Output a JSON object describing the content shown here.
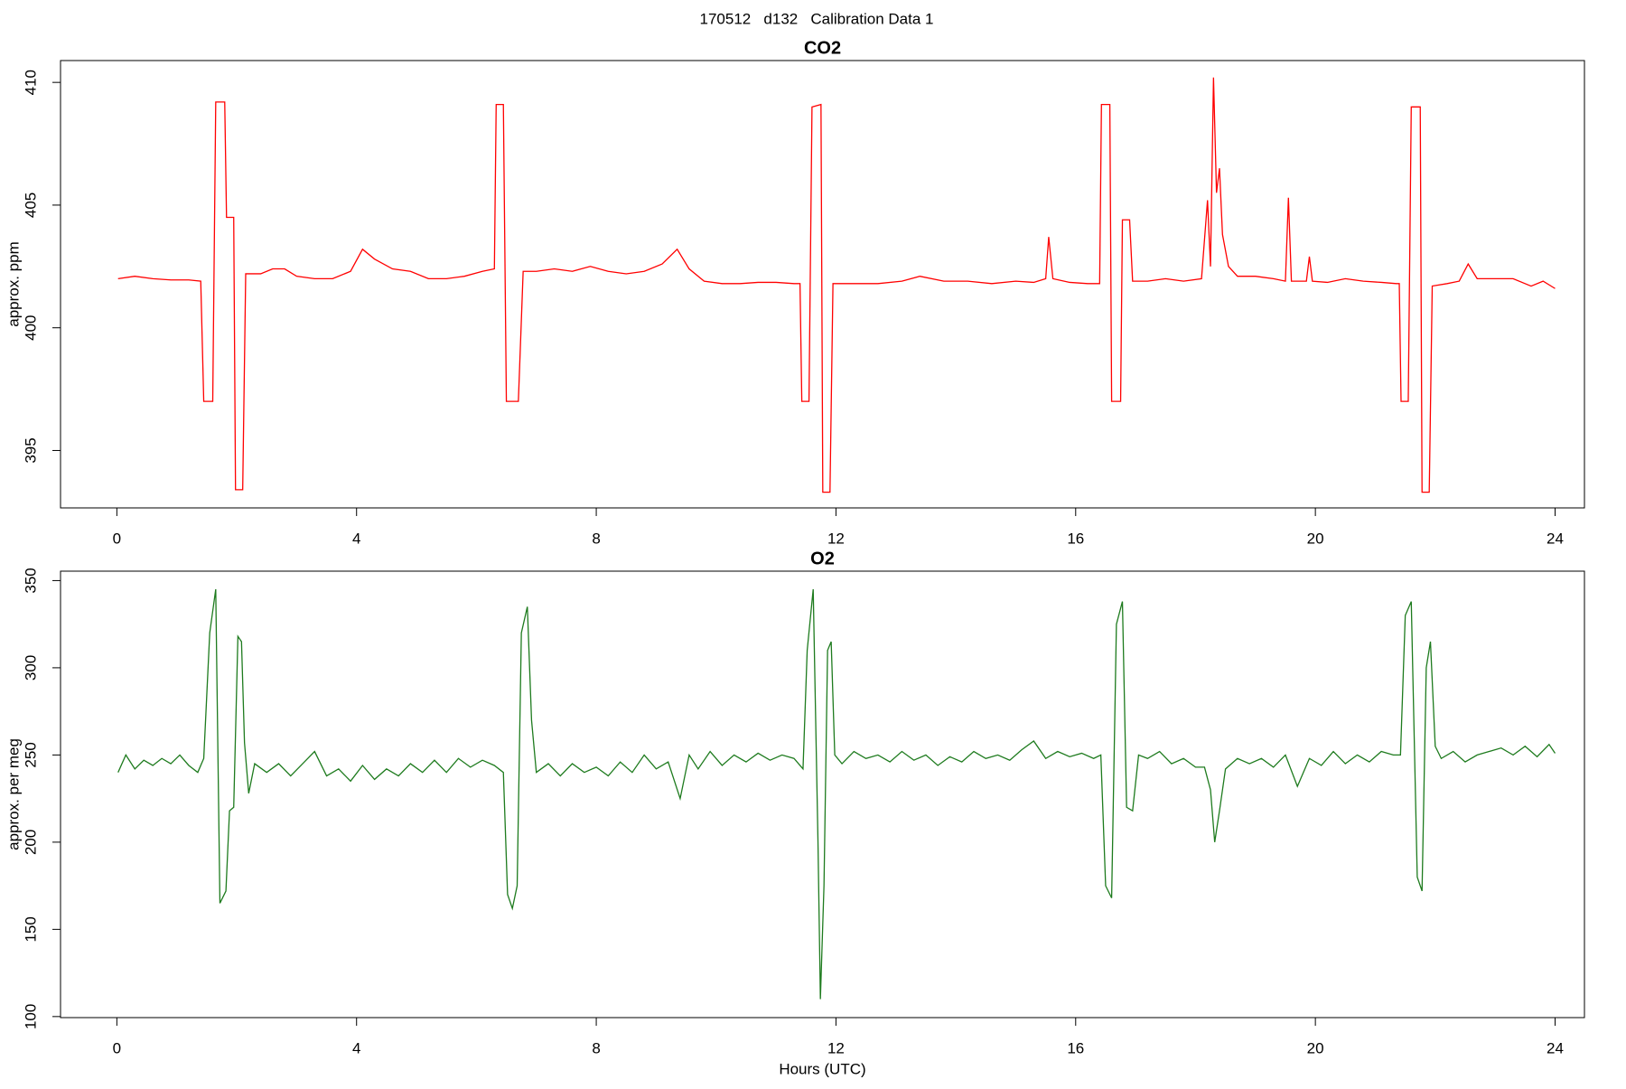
{
  "title": "170512   d132   Calibration Data 1",
  "chart_data": [
    {
      "type": "line",
      "title": "CO2",
      "ylabel": "approx. ppm",
      "x": [
        0.02,
        0.3,
        0.6,
        0.9,
        1.2,
        1.4,
        1.45,
        1.6,
        1.65,
        1.8,
        1.83,
        1.95,
        1.98,
        2.1,
        2.15,
        2.4,
        2.6,
        2.8,
        3.0,
        3.3,
        3.6,
        3.9,
        4.1,
        4.3,
        4.6,
        4.9,
        5.2,
        5.5,
        5.8,
        6.1,
        6.3,
        6.33,
        6.45,
        6.5,
        6.7,
        6.78,
        7.0,
        7.3,
        7.6,
        7.9,
        8.2,
        8.5,
        8.8,
        9.1,
        9.35,
        9.55,
        9.8,
        10.1,
        10.4,
        10.7,
        11.0,
        11.3,
        11.4,
        11.43,
        11.55,
        11.6,
        11.75,
        11.78,
        11.9,
        11.95,
        12.3,
        12.7,
        13.1,
        13.4,
        13.8,
        14.2,
        14.6,
        15.0,
        15.3,
        15.5,
        15.55,
        15.62,
        15.9,
        16.2,
        16.4,
        16.43,
        16.57,
        16.6,
        16.75,
        16.78,
        16.9,
        16.95,
        17.2,
        17.5,
        17.8,
        18.1,
        18.2,
        18.25,
        18.3,
        18.35,
        18.4,
        18.45,
        18.55,
        18.7,
        19.0,
        19.3,
        19.5,
        19.55,
        19.6,
        19.85,
        19.9,
        19.95,
        20.2,
        20.5,
        20.8,
        21.1,
        21.35,
        21.4,
        21.43,
        21.55,
        21.6,
        21.75,
        21.78,
        21.9,
        21.95,
        22.2,
        22.4,
        22.55,
        22.7,
        23.0,
        23.3,
        23.6,
        23.8,
        24.0
      ],
      "series": [
        {
          "color": "#ff0000",
          "values": [
            402.0,
            402.1,
            402.0,
            401.95,
            401.95,
            401.9,
            397.0,
            397.0,
            409.2,
            409.2,
            404.5,
            404.5,
            393.4,
            393.4,
            402.2,
            402.2,
            402.4,
            402.4,
            402.1,
            402.0,
            402.0,
            402.3,
            403.2,
            402.8,
            402.4,
            402.3,
            402.0,
            402.0,
            402.1,
            402.3,
            402.4,
            409.1,
            409.1,
            397.0,
            397.0,
            402.3,
            402.3,
            402.4,
            402.3,
            402.5,
            402.3,
            402.2,
            402.3,
            402.6,
            403.2,
            402.4,
            401.9,
            401.8,
            401.8,
            401.85,
            401.85,
            401.8,
            401.8,
            397.0,
            397.0,
            409.0,
            409.1,
            393.3,
            393.3,
            401.8,
            401.8,
            401.8,
            401.9,
            402.1,
            401.9,
            401.9,
            401.8,
            401.9,
            401.85,
            402.0,
            403.7,
            402.0,
            401.85,
            401.8,
            401.8,
            409.1,
            409.1,
            397.0,
            397.0,
            404.4,
            404.4,
            401.9,
            401.9,
            402.0,
            401.9,
            402.0,
            405.2,
            402.5,
            410.2,
            405.5,
            406.5,
            403.8,
            402.5,
            402.1,
            402.1,
            402.0,
            401.9,
            405.3,
            401.9,
            401.9,
            402.9,
            401.9,
            401.85,
            402.0,
            401.9,
            401.85,
            401.8,
            401.8,
            397.0,
            397.0,
            409.0,
            409.0,
            393.3,
            393.3,
            401.7,
            401.8,
            401.9,
            402.6,
            402.0,
            402.0,
            402.0,
            401.7,
            401.9,
            401.6
          ]
        }
      ],
      "xlim": [
        -0.94,
        24.49
      ],
      "xticks": [
        0,
        4,
        8,
        12,
        16,
        20,
        24
      ],
      "ylim": [
        392.66,
        410.89
      ],
      "yticks": [
        395,
        400,
        405,
        410
      ]
    },
    {
      "type": "line",
      "title": "O2",
      "ylabel": "approx. per meg",
      "xlabel": "Hours (UTC)",
      "x": [
        0.02,
        0.15,
        0.3,
        0.45,
        0.6,
        0.75,
        0.9,
        1.05,
        1.2,
        1.35,
        1.45,
        1.55,
        1.65,
        1.72,
        1.82,
        1.88,
        1.95,
        2.02,
        2.08,
        2.13,
        2.2,
        2.3,
        2.5,
        2.7,
        2.9,
        3.1,
        3.3,
        3.5,
        3.7,
        3.9,
        4.1,
        4.3,
        4.5,
        4.7,
        4.9,
        5.1,
        5.3,
        5.5,
        5.7,
        5.9,
        6.1,
        6.3,
        6.45,
        6.52,
        6.6,
        6.68,
        6.75,
        6.85,
        6.92,
        7.0,
        7.2,
        7.4,
        7.6,
        7.8,
        8.0,
        8.2,
        8.4,
        8.6,
        8.8,
        9.0,
        9.2,
        9.4,
        9.55,
        9.7,
        9.9,
        10.1,
        10.3,
        10.5,
        10.7,
        10.9,
        11.1,
        11.3,
        11.45,
        11.52,
        11.62,
        11.7,
        11.74,
        11.8,
        11.86,
        11.92,
        11.98,
        12.1,
        12.3,
        12.5,
        12.7,
        12.9,
        13.1,
        13.3,
        13.5,
        13.7,
        13.9,
        14.1,
        14.3,
        14.5,
        14.7,
        14.9,
        15.1,
        15.3,
        15.5,
        15.7,
        15.9,
        16.1,
        16.3,
        16.42,
        16.5,
        16.6,
        16.68,
        16.78,
        16.85,
        16.95,
        17.05,
        17.2,
        17.4,
        17.6,
        17.8,
        18.0,
        18.15,
        18.25,
        18.32,
        18.4,
        18.5,
        18.7,
        18.9,
        19.1,
        19.3,
        19.5,
        19.7,
        19.9,
        20.1,
        20.3,
        20.5,
        20.7,
        20.9,
        21.1,
        21.3,
        21.42,
        21.5,
        21.6,
        21.7,
        21.78,
        21.85,
        21.92,
        22.0,
        22.1,
        22.3,
        22.5,
        22.7,
        22.9,
        23.1,
        23.3,
        23.5,
        23.7,
        23.9,
        24.0
      ],
      "series": [
        {
          "color": "#1e7b1e",
          "values": [
            240,
            250,
            242,
            247,
            244,
            248,
            245,
            250,
            244,
            240,
            248,
            320,
            345,
            165,
            172,
            218,
            220,
            318,
            315,
            257,
            228,
            245,
            240,
            245,
            238,
            245,
            252,
            238,
            242,
            235,
            244,
            236,
            242,
            238,
            245,
            240,
            247,
            240,
            248,
            243,
            247,
            244,
            240,
            170,
            162,
            175,
            320,
            335,
            270,
            240,
            245,
            238,
            245,
            240,
            243,
            238,
            246,
            240,
            250,
            242,
            246,
            225,
            250,
            242,
            252,
            244,
            250,
            246,
            251,
            247,
            250,
            248,
            242,
            310,
            345,
            200,
            110,
            175,
            310,
            315,
            250,
            245,
            252,
            248,
            250,
            246,
            252,
            247,
            250,
            244,
            249,
            246,
            252,
            248,
            250,
            247,
            253,
            258,
            248,
            252,
            249,
            251,
            248,
            250,
            175,
            168,
            325,
            338,
            220,
            218,
            250,
            248,
            252,
            245,
            248,
            243,
            243,
            230,
            200,
            218,
            242,
            248,
            245,
            248,
            243,
            250,
            232,
            248,
            244,
            252,
            245,
            250,
            246,
            252,
            250,
            250,
            330,
            338,
            180,
            172,
            300,
            315,
            255,
            248,
            252,
            246,
            250,
            252,
            254,
            250,
            255,
            249,
            256,
            251
          ]
        }
      ],
      "xlim": [
        -0.94,
        24.49
      ],
      "xticks": [
        0,
        4,
        8,
        12,
        16,
        20,
        24
      ],
      "ylim": [
        99.4,
        355.4
      ],
      "yticks": [
        100,
        150,
        200,
        250,
        300,
        350
      ]
    }
  ]
}
